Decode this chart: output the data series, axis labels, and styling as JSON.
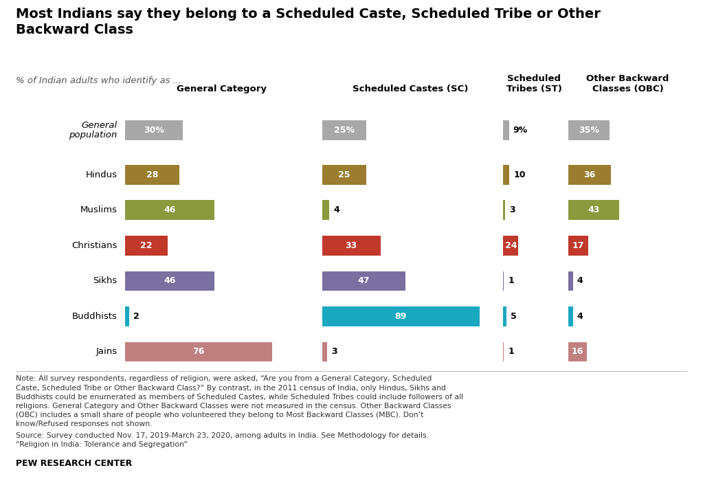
{
  "title": "Most Indians say they belong to a Scheduled Caste, Scheduled Tribe or Other\nBackward Class",
  "subtitle": "% of Indian adults who identify as ...",
  "categories": [
    "General\npopulation",
    "Hindus",
    "Muslims",
    "Christians",
    "Sikhs",
    "Buddhists",
    "Jains"
  ],
  "cat_italic": [
    true,
    false,
    false,
    false,
    false,
    false,
    false
  ],
  "col_headers": [
    "General Category",
    "Scheduled Castes (SC)",
    "Scheduled\nTribes (ST)",
    "Other Backward\nClasses (OBC)"
  ],
  "values": {
    "General Category": [
      30,
      28,
      46,
      22,
      46,
      2,
      76
    ],
    "Scheduled Castes (SC)": [
      25,
      25,
      4,
      33,
      47,
      89,
      3
    ],
    "Scheduled Tribes (ST)": [
      9,
      10,
      3,
      24,
      1,
      5,
      1
    ],
    "Other Backward Classes (OBC)": [
      35,
      36,
      43,
      17,
      4,
      4,
      16
    ]
  },
  "labels": {
    "General Category": [
      "30%",
      "28",
      "46",
      "22",
      "46",
      "2",
      "76"
    ],
    "Scheduled Castes (SC)": [
      "25%",
      "25",
      "4",
      "33",
      "47",
      "89",
      "3"
    ],
    "Scheduled Tribes (ST)": [
      "9%",
      "10",
      "3",
      "24",
      "1",
      "5",
      "1"
    ],
    "Other Backward Classes (OBC)": [
      "35%",
      "36",
      "43",
      "17",
      "4",
      "4",
      "16"
    ]
  },
  "cat_colors": [
    "#a8a8a8",
    "#9a7d2e",
    "#8a9a3c",
    "#c0392b",
    "#7b6fa0",
    "#1aa7c0",
    "#c08080"
  ],
  "note": "Note: All survey respondents, regardless of religion, were asked, “Are you from a General Category, Scheduled Caste, Scheduled Tribe or Other Backward Class?” By contrast, in the 2011 census of India, only Hindus, Sikhs and Buddhists could be enumerated as members of Scheduled Castes, while Scheduled Tribes could include followers of all religions. General Category and Other Backward Classes were not measured in the census. Other Backward Classes (OBC) includes a small share of people who volunteered they belong to Most Backward Classes (MBC). Don’t know/Refused responses not shown.",
  "source": "Source: Survey conducted Nov. 17, 2019-March 23, 2020, among adults in India. See Methodology for details.\n“Religion in India: Tolerance and Segregation”",
  "pew": "PEW RESEARCH CENTER",
  "background_color": "#ffffff",
  "col_keys": [
    "General Category",
    "Scheduled Castes (SC)",
    "Scheduled Tribes (ST)",
    "Other Backward Classes (OBC)"
  ],
  "col_max": [
    100,
    100,
    100,
    100
  ],
  "label_threshold": 5
}
